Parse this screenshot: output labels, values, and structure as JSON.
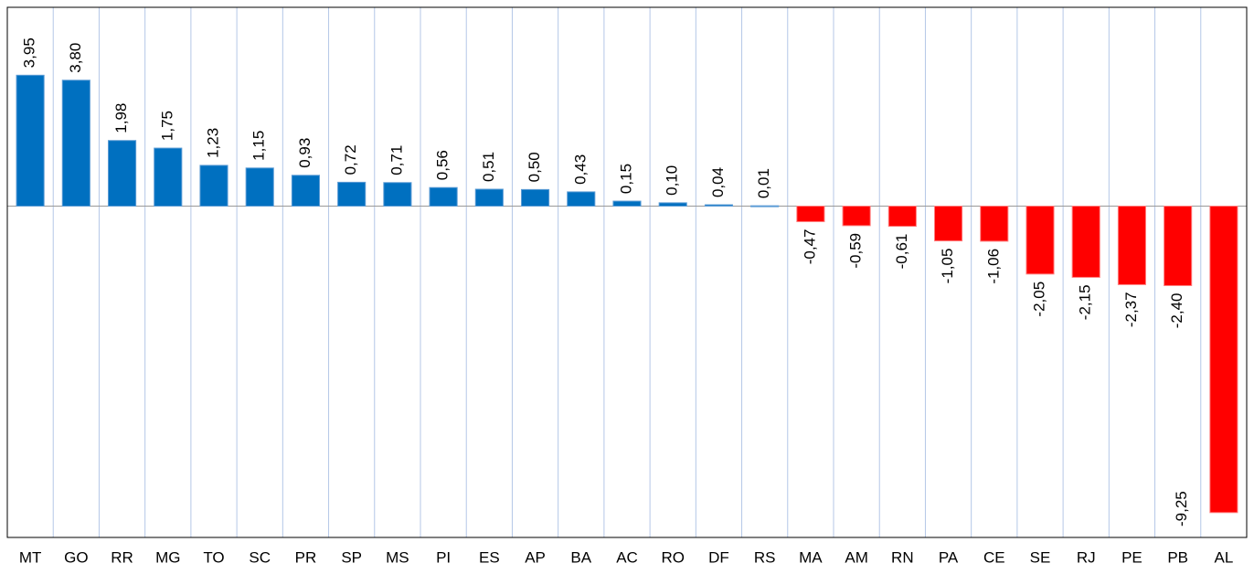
{
  "chart_data": {
    "type": "bar",
    "categories": [
      "MT",
      "GO",
      "RR",
      "MG",
      "TO",
      "SC",
      "PR",
      "SP",
      "MS",
      "PI",
      "ES",
      "AP",
      "BA",
      "AC",
      "RO",
      "DF",
      "RS",
      "MA",
      "AM",
      "RN",
      "PA",
      "CE",
      "SE",
      "RJ",
      "PE",
      "PB",
      "AL"
    ],
    "values": [
      3.95,
      3.8,
      1.98,
      1.75,
      1.23,
      1.15,
      0.93,
      0.72,
      0.71,
      0.56,
      0.51,
      0.5,
      0.43,
      0.15,
      0.1,
      0.04,
      0.01,
      -0.47,
      -0.59,
      -0.61,
      -1.05,
      -1.06,
      -2.05,
      -2.15,
      -2.37,
      -2.4,
      -9.25
    ],
    "value_labels": [
      "3,95",
      "3,80",
      "1,98",
      "1,75",
      "1,23",
      "1,15",
      "0,93",
      "0,72",
      "0,71",
      "0,56",
      "0,51",
      "0,50",
      "0,43",
      "0,15",
      "0,10",
      "0,04",
      "0,01",
      "-0,47",
      "-0,59",
      "-0,61",
      "-1,05",
      "-1,06",
      "-2,05",
      "-2,15",
      "-2,37",
      "-2,40",
      "-9,25"
    ],
    "colors": {
      "positive": "#0070C0",
      "negative": "#FF0000"
    },
    "ylim": [
      -10,
      6
    ],
    "grid": "x"
  }
}
